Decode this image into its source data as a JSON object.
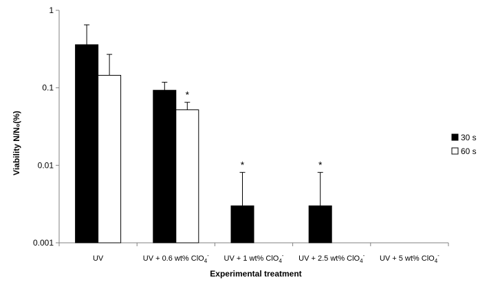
{
  "chart_data": {
    "type": "bar",
    "title": "",
    "xlabel": "Experimental treatment",
    "ylabel": "Viability N/N₀(%)",
    "y_scale": "log",
    "ylim": [
      0.001,
      1
    ],
    "y_ticks": [
      {
        "value": 0.001,
        "label": "0.001"
      },
      {
        "value": 0.01,
        "label": "0.01"
      },
      {
        "value": 0.1,
        "label": "0.1"
      },
      {
        "value": 1,
        "label": "1"
      }
    ],
    "categories": [
      {
        "base": "UV",
        "sub": "",
        "sup": ""
      },
      {
        "base": "UV + 0.6 wt% ClO",
        "sub": "4",
        "sup": "-"
      },
      {
        "base": "UV + 1 wt% ClO",
        "sub": "4",
        "sup": "-"
      },
      {
        "base": "UV + 2.5 wt% ClO",
        "sub": "4",
        "sup": "-"
      },
      {
        "base": "UV + 5 wt% ClO",
        "sub": "4",
        "sup": "-"
      }
    ],
    "series": [
      {
        "name": "30 s",
        "color": "#000000",
        "values": [
          0.36,
          0.093,
          0.003,
          0.003,
          null
        ],
        "error_upper": [
          0.65,
          0.118,
          0.0081,
          0.0081,
          null
        ],
        "significance": [
          "",
          "",
          "*",
          "*",
          ""
        ]
      },
      {
        "name": "60 s",
        "color": "#ffffff",
        "values": [
          0.145,
          0.052,
          null,
          null,
          null
        ],
        "error_upper": [
          0.27,
          0.065,
          null,
          null,
          null
        ],
        "significance": [
          "",
          "*",
          "",
          "",
          ""
        ]
      }
    ],
    "grid": false,
    "legend_position": "right",
    "error_bars": "upper"
  }
}
